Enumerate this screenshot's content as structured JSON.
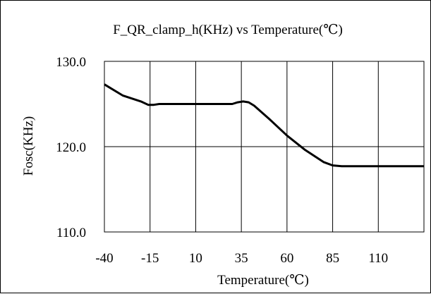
{
  "chart_data": {
    "type": "line",
    "title": "F_QR_clamp_h(KHz) vs Temperature(℃)",
    "xlabel": "Temperature(℃)",
    "ylabel": "Fosc(KHz)",
    "xlim": [
      -40,
      135
    ],
    "ylim": [
      110,
      130
    ],
    "x_ticks": [
      -40,
      -15,
      10,
      35,
      60,
      85,
      110
    ],
    "x_tick_labels": [
      "-40",
      "-15",
      "10",
      "35",
      "60",
      "85",
      "110"
    ],
    "y_ticks": [
      110,
      120,
      130
    ],
    "y_tick_labels": [
      "110.0",
      "120.0",
      "130.0"
    ],
    "grid": {
      "vertical": true,
      "horizontal": true
    },
    "legend": "none",
    "series": [
      {
        "color": "#000000",
        "x": [
          -40,
          -30,
          -20,
          -16,
          -13,
          -10,
          0,
          10,
          20,
          25,
          30,
          33,
          36,
          39,
          42,
          50,
          60,
          70,
          80,
          85,
          90,
          100,
          110,
          120,
          135
        ],
        "y": [
          127.3,
          126.0,
          125.3,
          124.9,
          124.9,
          125.0,
          125.0,
          125.0,
          125.0,
          125.0,
          125.0,
          125.2,
          125.3,
          125.2,
          124.8,
          123.3,
          121.3,
          119.6,
          118.2,
          117.8,
          117.7,
          117.7,
          117.7,
          117.7,
          117.7
        ]
      }
    ]
  }
}
